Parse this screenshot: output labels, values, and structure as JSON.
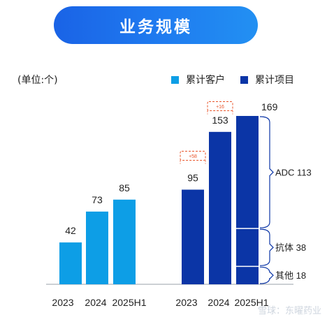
{
  "title": "业务规模",
  "unit_label": "(单位:个)",
  "legend": [
    {
      "label": "累计客户",
      "color": "#0d9ee6"
    },
    {
      "label": "累计项目",
      "color": "#0b35a6"
    }
  ],
  "watermark": "雪球：东曜药业",
  "chart_data": [
    {
      "type": "bar",
      "series": [
        {
          "name": "累计客户",
          "values": [
            42,
            73,
            85
          ]
        }
      ],
      "categories": [
        "2023",
        "2024",
        "2025H1"
      ],
      "color": "#0d9ee6"
    },
    {
      "type": "bar",
      "series": [
        {
          "name": "累计项目",
          "values": [
            95,
            153,
            169
          ]
        }
      ],
      "categories": [
        "2023",
        "2024",
        "2025H1"
      ],
      "color": "#0b35a6",
      "increase_annotations": [
        {
          "from": "2023",
          "to": "2024",
          "label": "+58"
        },
        {
          "from": "2024",
          "to": "2025H1",
          "label": "+16"
        }
      ],
      "breakdown_2025H1": [
        {
          "label": "ADC 113",
          "value": 113
        },
        {
          "label": "抗体 38",
          "value": 38
        },
        {
          "label": "其他 18",
          "value": 18
        }
      ]
    }
  ]
}
